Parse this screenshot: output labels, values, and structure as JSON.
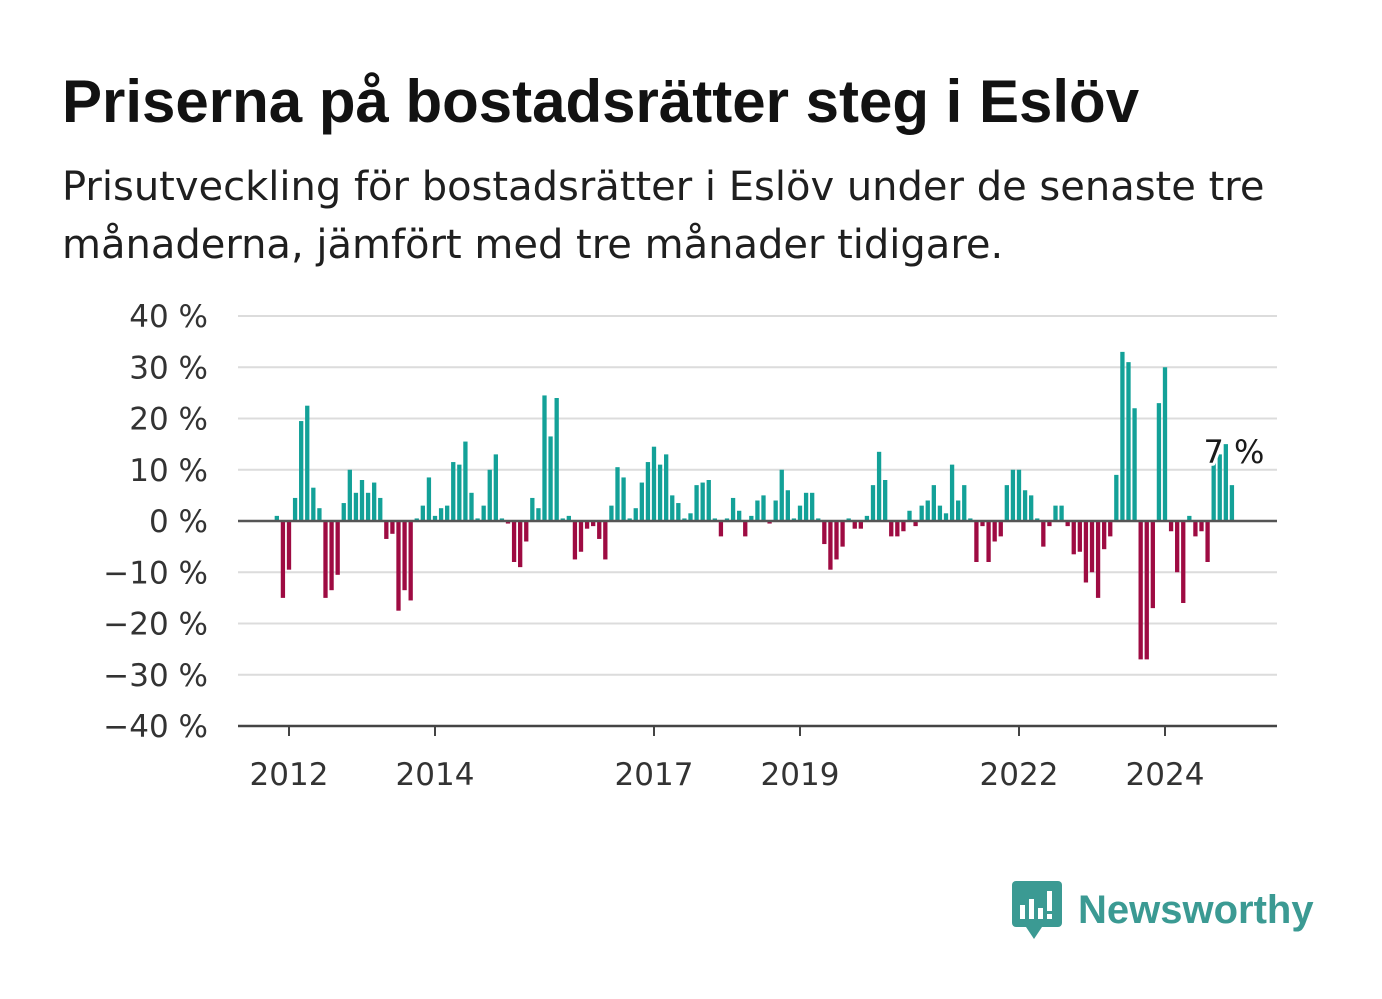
{
  "title": "Priserna på bostadsrätter steg i Eslöv",
  "subtitle": "Prisutveckling för bostadsrätter i Eslöv under de senaste tre månaderna, jämfört med tre månader tidigare.",
  "brand": {
    "name": "Newsworthy",
    "color": "#3b9a93"
  },
  "chart_data": {
    "type": "bar",
    "y_unit": "%",
    "ylim": [
      -40,
      40
    ],
    "yticks": [
      40,
      30,
      20,
      10,
      0,
      -10,
      -20,
      -30,
      -40
    ],
    "ytick_labels": [
      "40 %",
      "30 %",
      "20 %",
      "10 %",
      "0 %",
      "−10 %",
      "−20 %",
      "−30 %",
      "−40 %"
    ],
    "xtick_labels": [
      {
        "label": "2012",
        "year": 2012
      },
      {
        "label": "2014",
        "year": 2014
      },
      {
        "label": "2017",
        "year": 2017
      },
      {
        "label": "2019",
        "year": 2019
      },
      {
        "label": "2022",
        "year": 2022
      },
      {
        "label": "2024",
        "year": 2024
      }
    ],
    "start": "2011-11",
    "frequency": "monthly",
    "colors": {
      "positive": "#13a198",
      "negative": "#9e0b42"
    },
    "values": [
      1,
      -15,
      -9.5,
      4.5,
      19.5,
      22.5,
      6.5,
      2.5,
      -15,
      -13.5,
      -10.5,
      3.5,
      10,
      5.5,
      8,
      5.5,
      7.5,
      4.5,
      -3.5,
      -2.5,
      -17.5,
      -13.5,
      -15.5,
      0.5,
      3,
      8.5,
      1,
      2.5,
      3,
      11.5,
      11,
      15.5,
      5.5,
      0.5,
      3,
      10,
      13,
      0.5,
      -0.5,
      -8,
      -9,
      -4,
      4.5,
      2.5,
      24.5,
      16.5,
      24,
      0.5,
      1,
      -7.5,
      -6,
      -1.5,
      -1,
      -3.5,
      -7.5,
      3,
      10.5,
      8.5,
      0.5,
      2.5,
      7.5,
      11.5,
      14.5,
      11,
      13,
      5,
      3.5,
      0.5,
      1.5,
      7,
      7.5,
      8,
      0.5,
      -3,
      0.5,
      4.5,
      2,
      -3,
      1,
      4,
      5,
      -0.5,
      4,
      10,
      6,
      0.5,
      3,
      5.5,
      5.5,
      0.5,
      -4.5,
      -9.5,
      -7.5,
      -5,
      0.5,
      -1.5,
      -1.5,
      1,
      7,
      13.5,
      8,
      -3,
      -3,
      -2,
      2,
      -1,
      3,
      4,
      7,
      3,
      1.5,
      11,
      4,
      7,
      0.5,
      -8,
      -1,
      -8,
      -4,
      -3,
      7,
      10,
      10,
      6,
      5,
      0.5,
      -5,
      -1,
      3,
      3,
      -1,
      -6.5,
      -6,
      -12,
      -10,
      -15,
      -5.5,
      -3,
      9,
      33,
      31,
      22,
      -27,
      -27,
      -17,
      23,
      30,
      -2,
      -10,
      -16,
      1,
      -3,
      -2,
      -8,
      12,
      13,
      15,
      7
    ],
    "annotation": {
      "text": "7 %",
      "value": 7
    }
  }
}
